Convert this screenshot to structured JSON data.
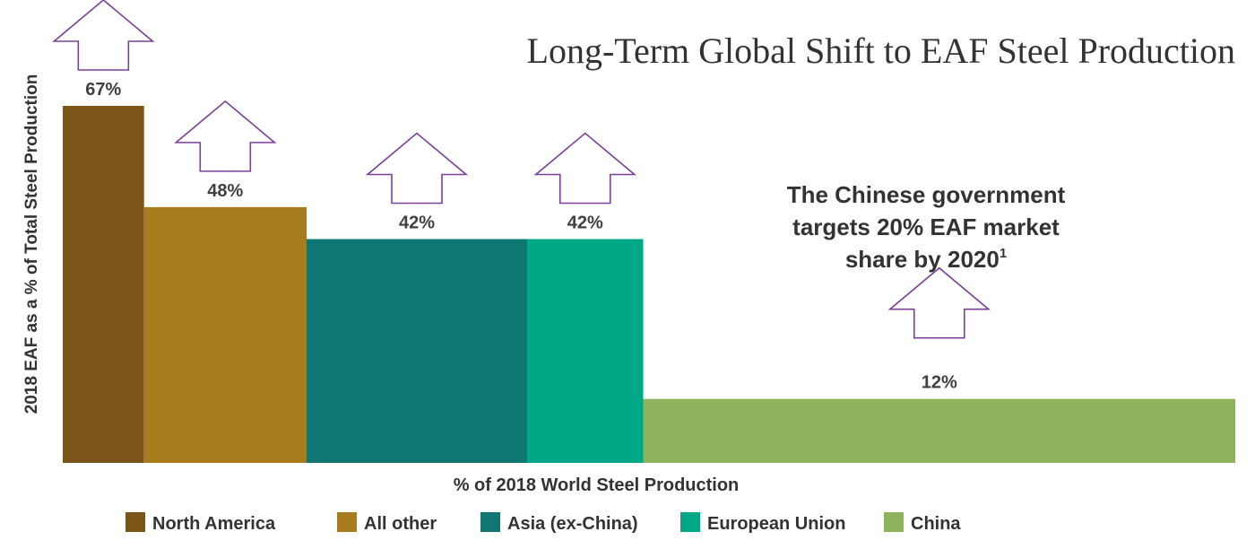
{
  "chart_data": {
    "type": "bar",
    "title": "Long-Term Global Shift to EAF Steel Production",
    "ylabel": "2018 EAF as a % of Total Steel Production",
    "xlabel": "% of 2018 World Steel Production",
    "categories": [
      "North America",
      "All other",
      "Asia (ex-China)",
      "European Union",
      "China"
    ],
    "values": [
      67,
      48,
      42,
      42,
      12
    ],
    "value_labels": [
      "67%",
      "48%",
      "42%",
      "42%",
      "12%"
    ],
    "widths": [
      7,
      14,
      19,
      10,
      51
    ],
    "colors": [
      "#7b5417",
      "#a87b1c",
      "#0f7672",
      "#00a887",
      "#8db35c"
    ],
    "ylim": [
      0,
      67
    ],
    "xlim": [
      0,
      100
    ],
    "grid": false,
    "legend_position": "bottom",
    "arrow_color": "#7b3f99",
    "annotation": {
      "lines": [
        "The Chinese government",
        "targets 20% EAF market",
        "share by 2020"
      ],
      "superscript": "1"
    }
  }
}
